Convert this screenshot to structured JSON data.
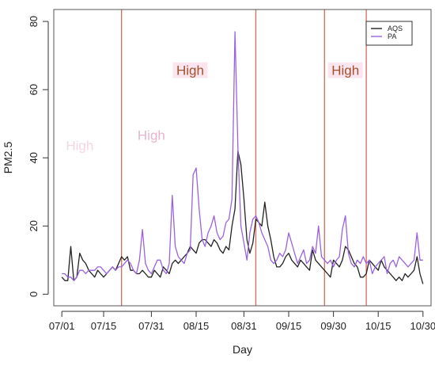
{
  "chart_data": {
    "type": "line",
    "title": "",
    "xlabel": "Day",
    "ylabel": "PM2.5",
    "ylim": [
      0,
      80
    ],
    "xlim_day": [
      0,
      121
    ],
    "grid": false,
    "legend_position": "top-right",
    "x_ticks": [
      {
        "day": 0,
        "label": "07/01"
      },
      {
        "day": 14,
        "label": "07/15"
      },
      {
        "day": 30,
        "label": "07/31"
      },
      {
        "day": 45,
        "label": "08/15"
      },
      {
        "day": 61,
        "label": "08/31"
      },
      {
        "day": 76,
        "label": "09/15"
      },
      {
        "day": 91,
        "label": "09/30"
      },
      {
        "day": 106,
        "label": "10/15"
      },
      {
        "day": 121,
        "label": "10/30"
      }
    ],
    "y_ticks": [
      0,
      20,
      40,
      60,
      80
    ],
    "vertical_lines_day": [
      20,
      65,
      88,
      102
    ],
    "vertical_line_color": "#d86a5a",
    "annotations": [
      {
        "text": "High",
        "day": 43,
        "y": 65,
        "color": "#a0522d",
        "bg": "#fbe6ef"
      },
      {
        "text": "High",
        "day": 95,
        "y": 65,
        "color": "#a0522d",
        "bg": "#fbe6ef"
      },
      {
        "text": "High",
        "day": 6,
        "y": 43,
        "color": "#f3d6e4",
        "bg": "none"
      },
      {
        "text": "High",
        "day": 30,
        "y": 46,
        "color": "#e8b3cc",
        "bg": "none"
      }
    ],
    "x_day": [
      0,
      1,
      2,
      3,
      4,
      5,
      6,
      7,
      8,
      9,
      10,
      11,
      12,
      13,
      14,
      15,
      16,
      17,
      18,
      19,
      20,
      21,
      22,
      23,
      24,
      25,
      26,
      27,
      28,
      29,
      30,
      31,
      32,
      33,
      34,
      35,
      36,
      37,
      38,
      39,
      40,
      41,
      42,
      43,
      44,
      45,
      46,
      47,
      48,
      49,
      50,
      51,
      52,
      53,
      54,
      55,
      56,
      57,
      58,
      59,
      60,
      61,
      62,
      63,
      64,
      65,
      66,
      67,
      68,
      69,
      70,
      71,
      72,
      73,
      74,
      75,
      76,
      77,
      78,
      79,
      80,
      81,
      82,
      83,
      84,
      85,
      86,
      87,
      88,
      89,
      90,
      91,
      92,
      93,
      94,
      95,
      96,
      97,
      98,
      99,
      100,
      101,
      102,
      103,
      104,
      105,
      106,
      107,
      108,
      109,
      110,
      111,
      112,
      113,
      114,
      115,
      116,
      117,
      118,
      119,
      120,
      121
    ],
    "series": [
      {
        "name": "AQS",
        "color": "#222222",
        "values": [
          5,
          4,
          4,
          14,
          4,
          5,
          12,
          10,
          9,
          7,
          6,
          5,
          7,
          6,
          5,
          6,
          7,
          8,
          7,
          9,
          11,
          10,
          11,
          7,
          7,
          6,
          6,
          7,
          6,
          5,
          5,
          7,
          6,
          5,
          8,
          7,
          6,
          9,
          10,
          9,
          10,
          11,
          12,
          14,
          13,
          12,
          15,
          16,
          16,
          15,
          14,
          16,
          15,
          13,
          12,
          14,
          13,
          20,
          25,
          42,
          38,
          28,
          16,
          12,
          15,
          22,
          21,
          20,
          27,
          20,
          16,
          11,
          8,
          8,
          9,
          11,
          12,
          10,
          9,
          8,
          10,
          9,
          8,
          7,
          13,
          10,
          9,
          8,
          7,
          6,
          5,
          10,
          9,
          8,
          10,
          14,
          13,
          11,
          9,
          8,
          5,
          5,
          6,
          10,
          9,
          8,
          7,
          10,
          8,
          7,
          6,
          5,
          4,
          5,
          4,
          6,
          5,
          6,
          7,
          11,
          6,
          3
        ]
      },
      {
        "name": "PA",
        "color": "#9a62e0",
        "values": [
          6,
          6,
          5,
          5,
          4,
          5,
          7,
          7,
          6,
          7,
          7,
          7,
          8,
          8,
          7,
          6,
          7,
          8,
          7,
          8,
          8,
          9,
          10,
          9,
          7,
          6,
          10,
          19,
          9,
          7,
          6,
          8,
          10,
          10,
          7,
          6,
          9,
          29,
          14,
          11,
          10,
          9,
          12,
          13,
          35,
          37,
          25,
          16,
          14,
          18,
          20,
          23,
          18,
          16,
          17,
          21,
          22,
          28,
          77,
          43,
          20,
          15,
          10,
          18,
          22,
          23,
          21,
          18,
          16,
          14,
          10,
          9,
          10,
          12,
          11,
          13,
          18,
          15,
          12,
          9,
          11,
          13,
          9,
          10,
          14,
          12,
          20,
          11,
          10,
          9,
          10,
          8,
          10,
          11,
          19,
          23,
          12,
          9,
          8,
          10,
          9,
          11,
          9,
          10,
          6,
          8,
          9,
          10,
          11,
          6,
          9,
          10,
          8,
          11,
          10,
          9,
          8,
          9,
          10,
          18,
          10,
          10
        ]
      }
    ]
  }
}
